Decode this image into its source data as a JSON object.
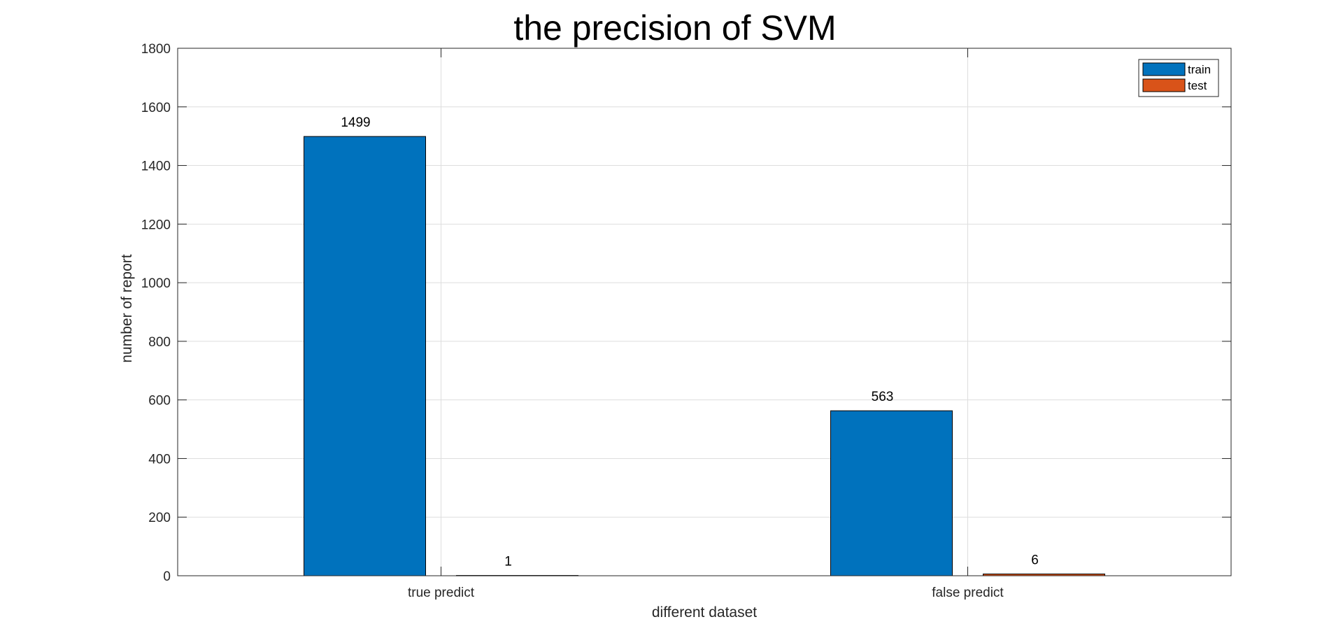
{
  "chart_data": {
    "type": "bar",
    "title": "the precision of SVM",
    "xlabel": "different dataset",
    "ylabel": "number of report",
    "categories": [
      "true predict",
      "false predict"
    ],
    "series": [
      {
        "name": "train",
        "values": [
          1499,
          563
        ],
        "color": "#0072BD"
      },
      {
        "name": "test",
        "values": [
          1,
          6
        ],
        "color": "#D95319"
      }
    ],
    "data_labels": [
      [
        "1499",
        "563"
      ],
      [
        "1",
        "6"
      ]
    ],
    "ylim": [
      0,
      1800
    ],
    "yticks": [
      0,
      200,
      400,
      600,
      800,
      1000,
      1200,
      1400,
      1600,
      1800
    ],
    "ytick_labels": [
      "0",
      "200",
      "400",
      "600",
      "800",
      "1000",
      "1200",
      "1400",
      "1600",
      "1800"
    ],
    "grid": true,
    "legend_position": "top-right"
  }
}
